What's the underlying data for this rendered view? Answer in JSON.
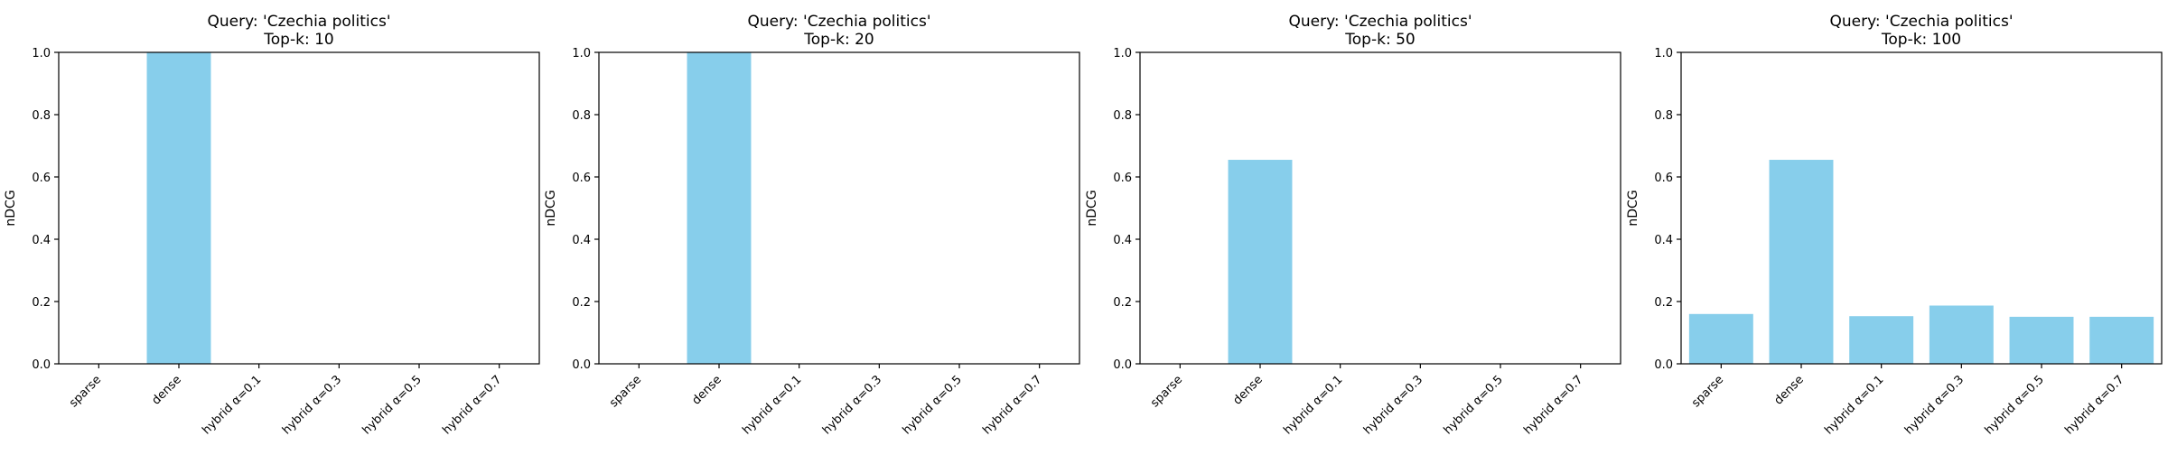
{
  "chart_data": [
    {
      "type": "bar",
      "title_line1": "Query: 'Czechia politics'",
      "title_line2": "Top-k: 10",
      "ylabel": "nDCG",
      "xlabel": "",
      "categories": [
        "sparse",
        "dense",
        "hybrid α=0.1",
        "hybrid α=0.3",
        "hybrid α=0.5",
        "hybrid α=0.7"
      ],
      "values": [
        0.0,
        1.0,
        0.0,
        0.0,
        0.0,
        0.0
      ],
      "ylim": [
        0,
        1
      ],
      "yticks": [
        "0.0",
        "0.2",
        "0.4",
        "0.6",
        "0.8",
        "1.0"
      ],
      "bar_color": "#87CEEB",
      "grid": false
    },
    {
      "type": "bar",
      "title_line1": "Query: 'Czechia politics'",
      "title_line2": "Top-k: 20",
      "ylabel": "nDCG",
      "xlabel": "",
      "categories": [
        "sparse",
        "dense",
        "hybrid α=0.1",
        "hybrid α=0.3",
        "hybrid α=0.5",
        "hybrid α=0.7"
      ],
      "values": [
        0.0,
        1.0,
        0.0,
        0.0,
        0.0,
        0.0
      ],
      "ylim": [
        0,
        1
      ],
      "yticks": [
        "0.0",
        "0.2",
        "0.4",
        "0.6",
        "0.8",
        "1.0"
      ],
      "bar_color": "#87CEEB",
      "grid": false
    },
    {
      "type": "bar",
      "title_line1": "Query: 'Czechia politics'",
      "title_line2": "Top-k: 50",
      "ylabel": "nDCG",
      "xlabel": "",
      "categories": [
        "sparse",
        "dense",
        "hybrid α=0.1",
        "hybrid α=0.3",
        "hybrid α=0.5",
        "hybrid α=0.7"
      ],
      "values": [
        0.0,
        0.655,
        0.0,
        0.0,
        0.0,
        0.0
      ],
      "ylim": [
        0,
        1
      ],
      "yticks": [
        "0.0",
        "0.2",
        "0.4",
        "0.6",
        "0.8",
        "1.0"
      ],
      "bar_color": "#87CEEB",
      "grid": false
    },
    {
      "type": "bar",
      "title_line1": "Query: 'Czechia politics'",
      "title_line2": "Top-k: 100",
      "ylabel": "nDCG",
      "xlabel": "",
      "categories": [
        "sparse",
        "dense",
        "hybrid α=0.1",
        "hybrid α=0.3",
        "hybrid α=0.5",
        "hybrid α=0.7"
      ],
      "values": [
        0.16,
        0.655,
        0.153,
        0.187,
        0.151,
        0.151
      ],
      "ylim": [
        0,
        1
      ],
      "yticks": [
        "0.0",
        "0.2",
        "0.4",
        "0.6",
        "0.8",
        "1.0"
      ],
      "bar_color": "#87CEEB",
      "grid": false
    }
  ]
}
